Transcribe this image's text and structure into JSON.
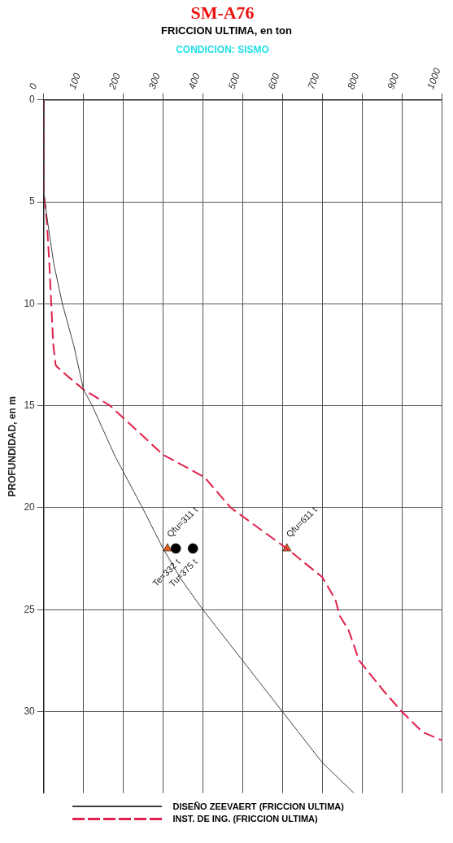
{
  "chart_data": {
    "type": "line",
    "title": "SM-A76",
    "subtitle": "CONDICION: SISMO",
    "xlabel": "FRICCION ULTIMA, en ton",
    "ylabel": "PROFUNDIDAD, en m",
    "xlim": [
      0,
      1000
    ],
    "xticks": [
      0,
      100,
      200,
      300,
      400,
      500,
      600,
      700,
      800,
      900,
      1000
    ],
    "ylim": [
      34,
      0
    ],
    "yticks": [
      0,
      5,
      10,
      15,
      20,
      25,
      30
    ],
    "grid": true,
    "legend": "bottom",
    "series": [
      {
        "name": "DISEÑO ZEEVAERT (FRICCION ULTIMA)",
        "type": "line",
        "color": "#404040",
        "line_style": "solid",
        "marker": "none",
        "x": [
          0,
          0,
          10,
          25,
          47,
          75,
          100,
          122,
          180,
          248,
          300,
          345,
          400,
          500,
          600,
          700,
          780
        ],
        "values": [
          0,
          4.5,
          6,
          8,
          10,
          12,
          14.2,
          15,
          17.5,
          20,
          22,
          23.5,
          25,
          27.5,
          30,
          32.5,
          34
        ]
      },
      {
        "name": "INST. DE ING. (FRICCION ULTIMA)",
        "type": "line",
        "color": "#e0204a",
        "line_style": "dashed",
        "marker": "none",
        "x": [
          0,
          0,
          8,
          14,
          19,
          24,
          30,
          34,
          57,
          100,
          167,
          300,
          404,
          470,
          611,
          700,
          733,
          744,
          766,
          793,
          855,
          900,
          952,
          1000
        ],
        "values": [
          0,
          4.5,
          6,
          8,
          10,
          12,
          13,
          13.1,
          13.5,
          14.2,
          15,
          17.4,
          18.5,
          20,
          22,
          23.4,
          24.5,
          25.3,
          26,
          27.5,
          29,
          30,
          31,
          31.4
        ]
      },
      {
        "type": "scatter",
        "color": "#e06020",
        "marker": "triangle",
        "x": [
          311,
          611
        ],
        "values": [
          22,
          22
        ]
      },
      {
        "type": "scatter",
        "color": "#000000",
        "marker": "circle",
        "x": [
          332,
          375
        ],
        "values": [
          22,
          22
        ]
      }
    ],
    "annotations": [
      {
        "text": "Qfu=311 t",
        "x": 311,
        "y": 22
      },
      {
        "text": "Qfu=611 t",
        "x": 611,
        "y": 22
      },
      {
        "text": "Te=332 t",
        "x": 332,
        "y": 22
      },
      {
        "text": "Tu=375 t",
        "x": 375,
        "y": 22
      }
    ]
  }
}
